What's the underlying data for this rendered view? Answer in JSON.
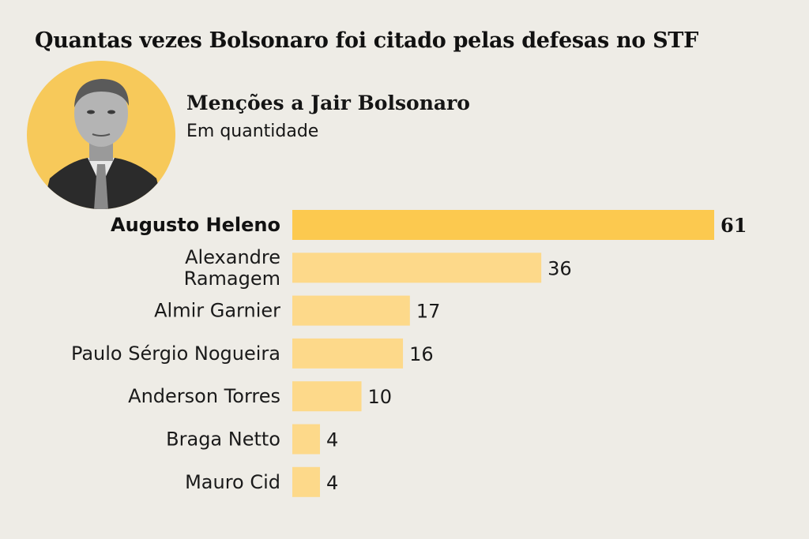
{
  "header": {
    "title": "Quantas vezes Bolsonaro foi citado pelas defesas no STF",
    "subtitle": "Menções a Jair Bolsonaro",
    "unit": "Em quantidade"
  },
  "colors": {
    "background": "#eeece6",
    "highlight_bar": "#fcc94f",
    "bar": "#fdd98a",
    "portrait_circle": "#f7c95a"
  },
  "chart_data": {
    "type": "bar",
    "orientation": "horizontal",
    "title": "Menções a Jair Bolsonaro",
    "subtitle": "Em quantidade",
    "categories": [
      [
        "Augusto Heleno"
      ],
      [
        "Alexandre",
        "Ramagem"
      ],
      [
        "Almir Garnier"
      ],
      [
        "Paulo Sérgio Nogueira"
      ],
      [
        "Anderson Torres"
      ],
      [
        "Braga Netto"
      ],
      [
        "Mauro Cid"
      ]
    ],
    "values": [
      61,
      36,
      17,
      16,
      10,
      4,
      4
    ],
    "highlight_index": 0,
    "xlim": [
      0,
      61
    ],
    "grid": false,
    "legend": "none"
  }
}
